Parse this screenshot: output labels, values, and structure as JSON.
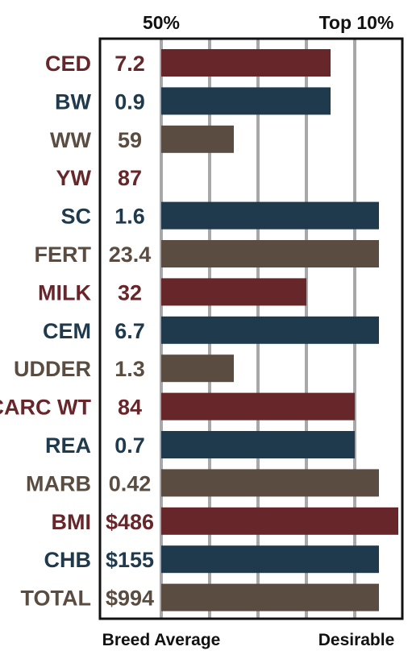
{
  "chart_data": {
    "type": "bar",
    "orientation": "horizontal",
    "top_labels": {
      "left": "50%",
      "right": "Top 10%"
    },
    "bottom_labels": {
      "left": "Breed Average",
      "right": "Desirable"
    },
    "grid": true,
    "colors": {
      "red": "#66262a",
      "blue": "#1f3a4d",
      "brown": "#5a4c40",
      "grid": "#a8a8aa",
      "frame": "#111111"
    },
    "rows": [
      {
        "trait": "CED",
        "value": "7.2",
        "color": "red",
        "bar": 0.7
      },
      {
        "trait": "BW",
        "value": "0.9",
        "color": "blue",
        "bar": 0.7
      },
      {
        "trait": "WW",
        "value": "59",
        "color": "brown",
        "bar": 0.3
      },
      {
        "trait": "YW",
        "value": "87",
        "color": "red",
        "bar": 0.0
      },
      {
        "trait": "SC",
        "value": "1.6",
        "color": "blue",
        "bar": 0.9
      },
      {
        "trait": "FERT",
        "value": "23.4",
        "color": "brown",
        "bar": 0.9
      },
      {
        "trait": "MILK",
        "value": "32",
        "color": "red",
        "bar": 0.6
      },
      {
        "trait": "CEM",
        "value": "6.7",
        "color": "blue",
        "bar": 0.9
      },
      {
        "trait": "UDDER",
        "value": "1.3",
        "color": "brown",
        "bar": 0.3
      },
      {
        "trait": "CARC WT",
        "value": "84",
        "color": "red",
        "bar": 0.8
      },
      {
        "trait": "REA",
        "value": "0.7",
        "color": "blue",
        "bar": 0.8
      },
      {
        "trait": "MARB",
        "value": "0.42",
        "color": "brown",
        "bar": 0.9
      },
      {
        "trait": "BMI",
        "value": "$486",
        "color": "red",
        "bar": 0.98
      },
      {
        "trait": "CHB",
        "value": "$155",
        "color": "blue",
        "bar": 0.9
      },
      {
        "trait": "TOTAL",
        "value": "$994",
        "color": "brown",
        "bar": 0.9
      }
    ]
  }
}
